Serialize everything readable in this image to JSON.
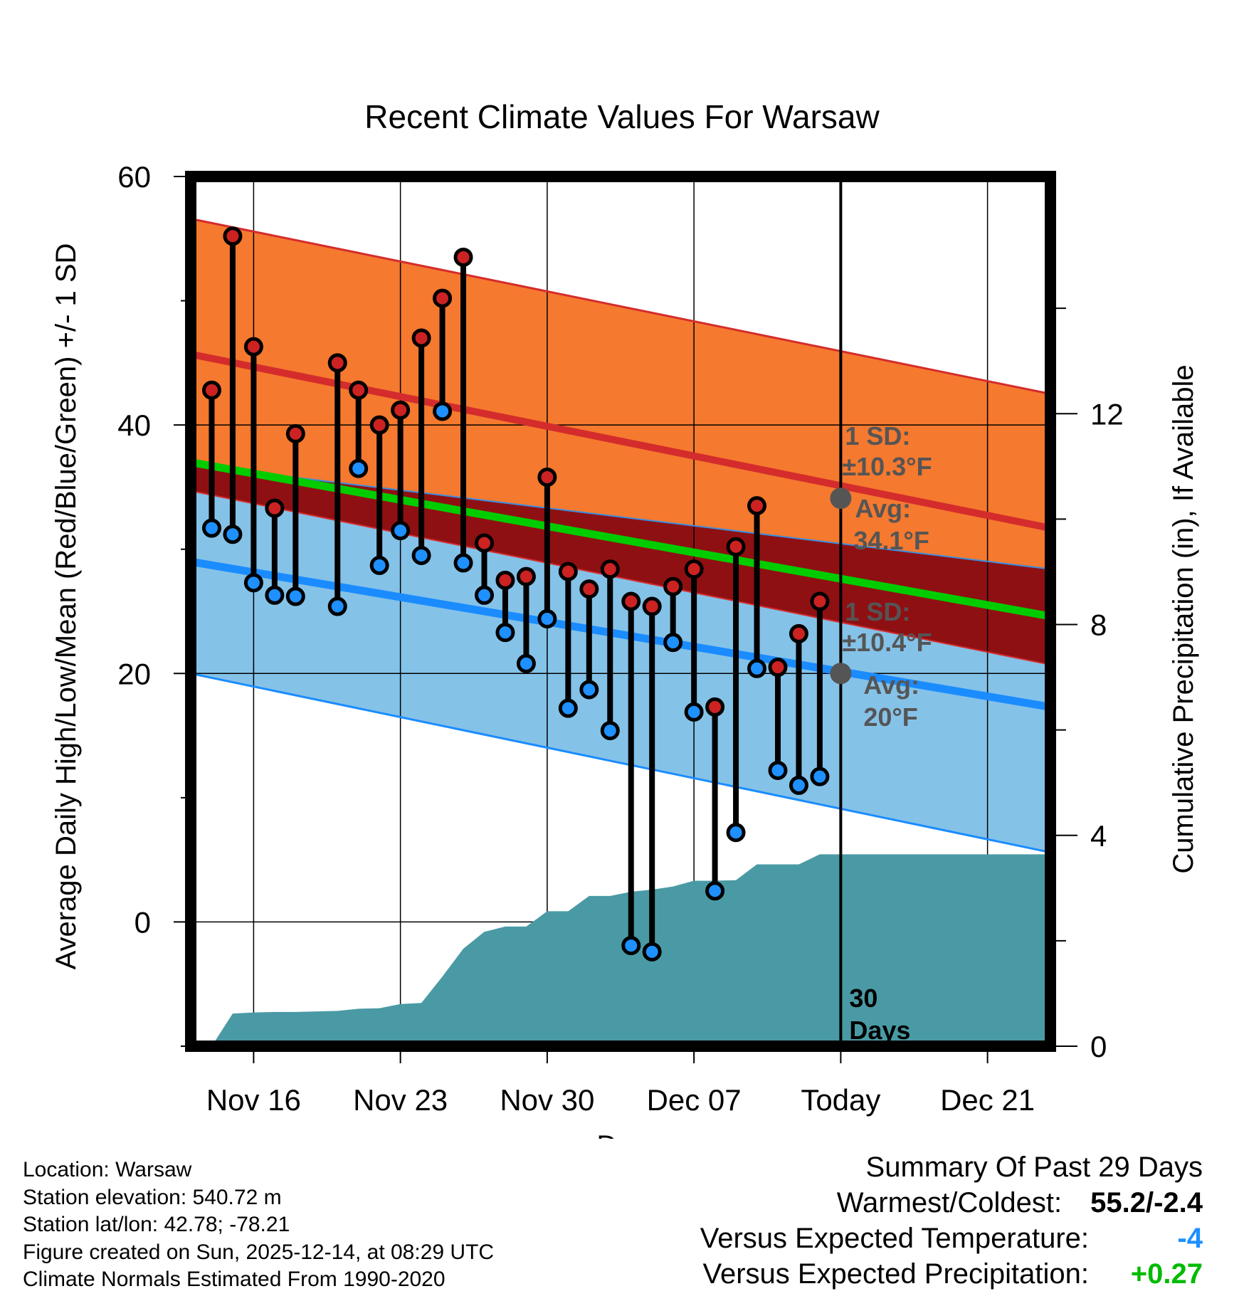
{
  "chart_data": {
    "type": "line",
    "title": "Recent Climate Values For Warsaw",
    "xlabel": "Day",
    "ylabel": "Average Daily High/Low/Mean (Red/Blue/Green) +/- 1 SD",
    "ylabel_right": "Cumulative Precipitation (in), If Available",
    "ylim": [
      -10,
      60
    ],
    "y_ticks": [
      "60",
      "40",
      "20",
      "0"
    ],
    "y_ticks_right": [
      "12",
      "8",
      "4",
      "0"
    ],
    "y_right_values": [
      12,
      8,
      4,
      0
    ],
    "y_right_lim": [
      0,
      16.5
    ],
    "xlim": [
      0,
      41
    ],
    "x_tick_positions": [
      3,
      10,
      17,
      24,
      31,
      38
    ],
    "x_ticks": [
      "Nov 16",
      "Nov 23",
      "Nov 30",
      "Dec 07",
      "Today",
      "Dec 21"
    ],
    "today_index": 31,
    "normals": {
      "x": [
        0,
        41
      ],
      "high_mean": [
        45.7,
        31.7
      ],
      "high_plus_sd": [
        56.6,
        42.5
      ],
      "high_minus_sd": [
        36.8,
        28.4
      ],
      "mean": [
        37.0,
        24.6
      ],
      "low_mean": [
        29.0,
        17.3
      ],
      "low_plus_sd": [
        34.7,
        20.7
      ],
      "low_minus_sd": [
        20.0,
        5.6
      ]
    },
    "series": [
      {
        "name": "Daily High",
        "color": "#cc2222",
        "x": [
          1,
          2,
          3,
          4,
          5,
          7,
          8,
          9,
          10,
          11,
          12,
          13,
          14,
          15,
          16,
          17,
          18,
          19,
          20,
          21,
          22,
          23,
          24,
          25,
          26,
          27,
          28,
          29,
          30
        ],
        "values": [
          42.8,
          55.2,
          46.3,
          33.3,
          39.3,
          45.0,
          42.8,
          40.0,
          41.2,
          47.0,
          50.2,
          53.5,
          30.5,
          27.5,
          27.8,
          35.8,
          28.2,
          26.8,
          28.4,
          25.8,
          25.4,
          27.0,
          28.4,
          17.3,
          30.2,
          33.5,
          20.5,
          23.2,
          25.8
        ]
      },
      {
        "name": "Daily Low",
        "color": "#1e90ff",
        "x": [
          1,
          2,
          3,
          4,
          5,
          7,
          8,
          9,
          10,
          11,
          12,
          13,
          14,
          15,
          16,
          17,
          18,
          19,
          20,
          21,
          22,
          23,
          24,
          25,
          26,
          27,
          28,
          29,
          30
        ],
        "values": [
          31.7,
          31.2,
          27.3,
          26.3,
          26.2,
          25.4,
          36.5,
          28.7,
          31.5,
          29.5,
          41.1,
          28.9,
          26.3,
          23.3,
          20.8,
          24.4,
          17.2,
          18.7,
          15.4,
          -1.9,
          -2.4,
          22.5,
          16.9,
          2.5,
          7.2,
          20.4,
          12.2,
          11.0,
          11.7
        ]
      }
    ],
    "precipitation": {
      "name": "Cumulative Precipitation",
      "color": "#4a9aa5",
      "x": [
        1,
        2,
        3,
        4,
        5,
        6,
        7,
        8,
        9,
        10,
        11,
        12,
        13,
        14,
        15,
        16,
        17,
        18,
        19,
        20,
        21,
        22,
        23,
        24,
        25,
        26,
        27,
        28,
        29,
        30,
        31,
        41
      ],
      "values": [
        0,
        0.62,
        0.64,
        0.65,
        0.65,
        0.66,
        0.67,
        0.71,
        0.72,
        0.8,
        0.82,
        1.32,
        1.85,
        2.17,
        2.27,
        2.27,
        2.56,
        2.56,
        2.85,
        2.85,
        2.93,
        2.97,
        3.03,
        3.14,
        3.14,
        3.15,
        3.45,
        3.45,
        3.45,
        3.64,
        3.64,
        3.64
      ]
    },
    "annotations": {
      "high_sd_label": "1 SD:",
      "high_sd_value": "±10.3°F",
      "high_avg_label": "Avg:",
      "high_avg_value": "34.1°F",
      "high_avg": 34.1,
      "low_sd_label": "1 SD:",
      "low_sd_value": "±10.4°F",
      "low_avg_label": "Avg:",
      "low_avg_value": "20°F",
      "low_avg": 20,
      "days_number": "30",
      "days_label": "Days"
    },
    "colors": {
      "high_band": "#f5792e",
      "high_line": "#d42c2c",
      "mid_band": "#8f1013",
      "mean_line": "#00cc00",
      "low_band": "#85c2e8",
      "low_line": "#1a8cff",
      "stem": "#000000",
      "avg_marker": "#555555"
    }
  },
  "footer": {
    "location": "Location: Warsaw",
    "elevation": "Station elevation: 540.72 m",
    "latlon": "Station lat/lon: 42.78; -78.21",
    "created": "Figure created on Sun, 2025-12-14, at 08:29 UTC",
    "normals": "Climate Normals Estimated From 1990-2020"
  },
  "summary": {
    "heading": "Summary Of Past 29 Days",
    "warm_cold_label": "Warmest/Coldest:",
    "warm_cold_value": "55.2/-2.4",
    "temp_label": "Versus Expected Temperature:",
    "temp_value": "-4",
    "temp_color": "#1e90ff",
    "precip_label": "Versus Expected Precipitation:",
    "precip_value": "+0.27",
    "precip_color": "#00bb00"
  }
}
